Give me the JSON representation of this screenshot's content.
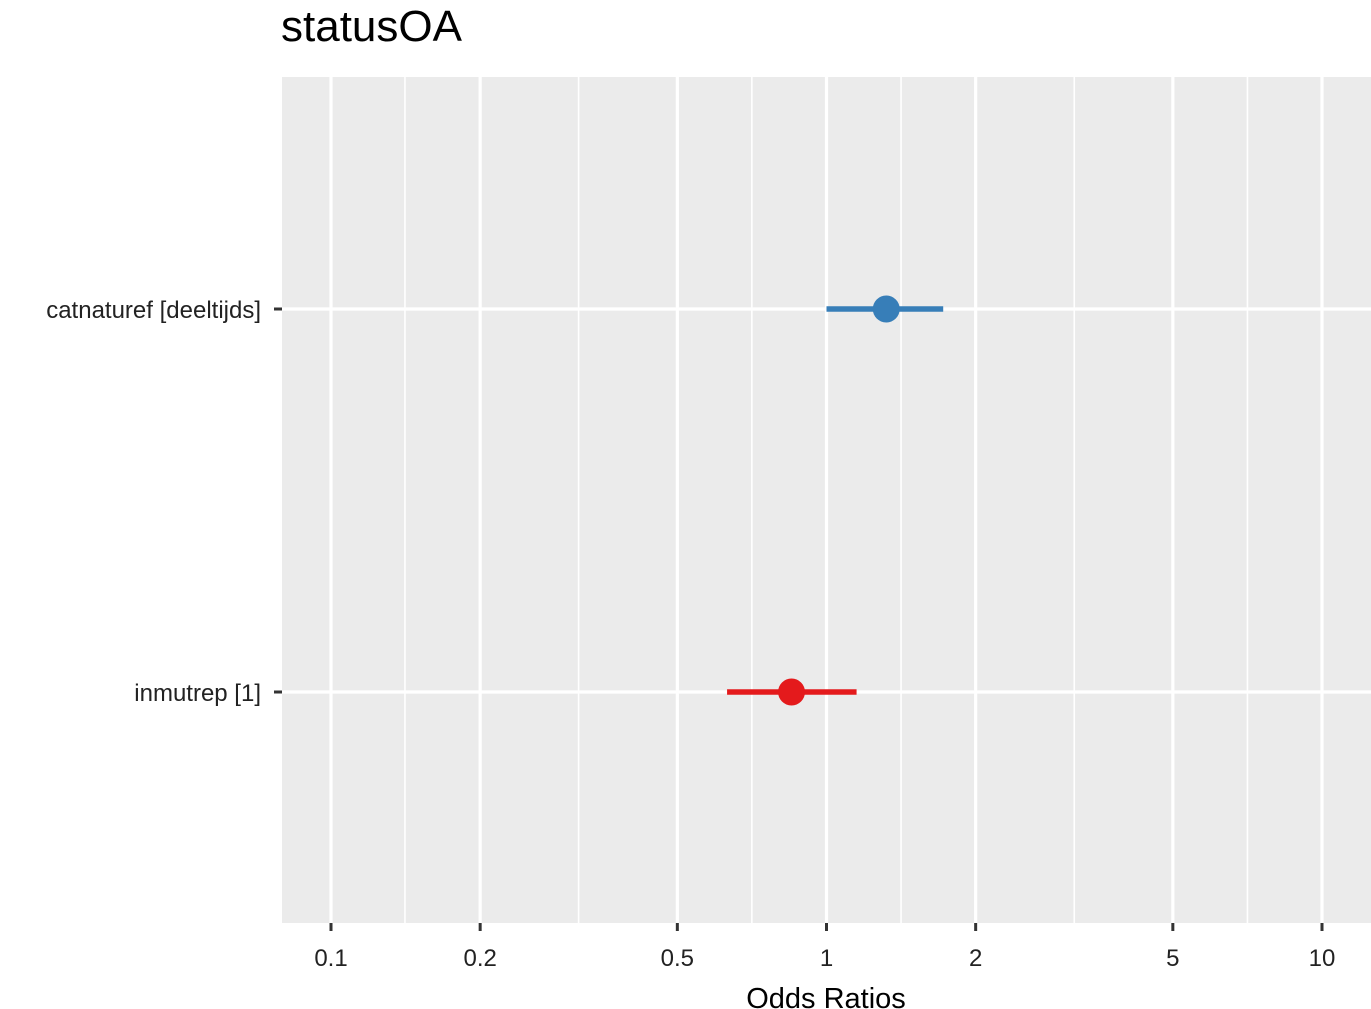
{
  "chart_data": {
    "type": "scatter",
    "subtype": "forest-plot",
    "title": "statusOA",
    "xlabel": "Odds Ratios",
    "ylabel": "",
    "x_scale": "log10",
    "xlim": [
      0.08,
      13
    ],
    "x_ticks": [
      {
        "value": 0.1,
        "label": "0.1"
      },
      {
        "value": 0.2,
        "label": "0.2"
      },
      {
        "value": 0.5,
        "label": "0.5"
      },
      {
        "value": 1,
        "label": "1"
      },
      {
        "value": 2,
        "label": "2"
      },
      {
        "value": 5,
        "label": "5"
      },
      {
        "value": 10,
        "label": "10"
      }
    ],
    "x_minor_ticks": [
      0.141,
      0.316,
      0.707,
      1.414,
      3.162,
      7.071
    ],
    "grid": true,
    "panel_background": "#EBEBEB",
    "grid_color": "#FFFFFF",
    "terms": [
      {
        "label": "catnaturef [deeltijds]",
        "estimate": 1.32,
        "ci_low": 1.0,
        "ci_high": 1.72,
        "color": "#377EB8"
      },
      {
        "label": "inmutrep [1]",
        "estimate": 0.85,
        "ci_low": 0.63,
        "ci_high": 1.15,
        "color": "#E41A1C"
      }
    ]
  }
}
